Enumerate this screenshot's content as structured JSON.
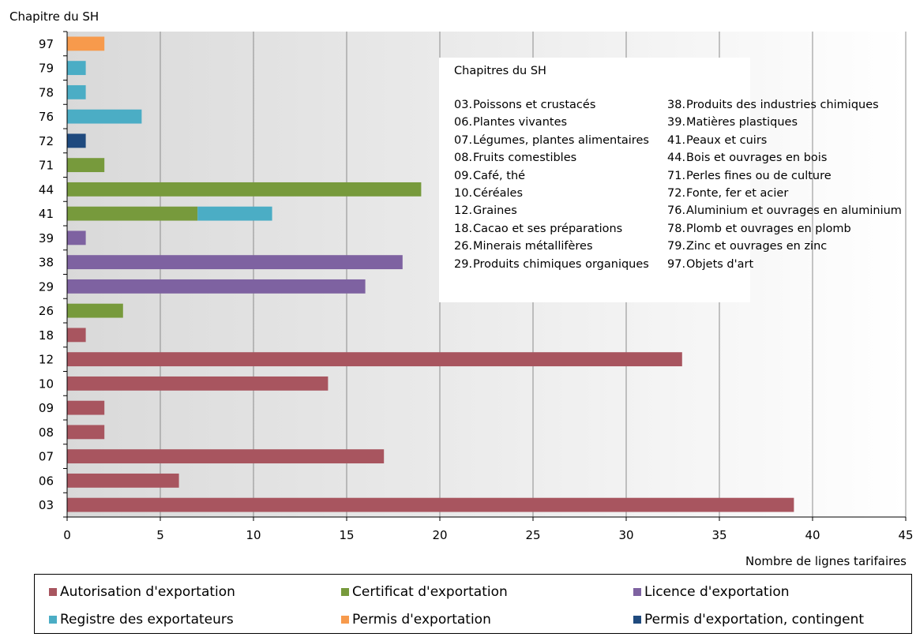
{
  "chart_data": {
    "type": "bar",
    "orientation": "horizontal",
    "stacked": true,
    "ylabel": "Chapitre du SH",
    "xlabel": "Nombre de lignes tarifaires",
    "xlim": [
      0,
      45
    ],
    "xticks": [
      0,
      5,
      10,
      15,
      20,
      25,
      30,
      35,
      40,
      45
    ],
    "categories": [
      "03",
      "06",
      "07",
      "08",
      "09",
      "10",
      "12",
      "18",
      "26",
      "29",
      "38",
      "39",
      "41",
      "44",
      "71",
      "72",
      "76",
      "78",
      "79",
      "97"
    ],
    "series": [
      {
        "name": "Autorisation d'exportation",
        "color": "#a8555f",
        "values": [
          39,
          6,
          17,
          2,
          2,
          14,
          33,
          1,
          0,
          0,
          0,
          0,
          0,
          0,
          0,
          0,
          0,
          0,
          0,
          0
        ]
      },
      {
        "name": "Certificat d'exportation",
        "color": "#779a3c",
        "values": [
          0,
          0,
          0,
          0,
          0,
          0,
          0,
          0,
          3,
          0,
          0,
          0,
          7,
          19,
          2,
          0,
          0,
          0,
          0,
          0
        ]
      },
      {
        "name": "Licence d'exportation",
        "color": "#7e62a1",
        "values": [
          0,
          0,
          0,
          0,
          0,
          0,
          0,
          0,
          0,
          16,
          18,
          1,
          0,
          0,
          0,
          0,
          0,
          0,
          0,
          0
        ]
      },
      {
        "name": "Registre des exportateurs",
        "color": "#4badc5",
        "values": [
          0,
          0,
          0,
          0,
          0,
          0,
          0,
          0,
          0,
          0,
          0,
          0,
          4,
          0,
          0,
          0,
          4,
          1,
          1,
          0
        ]
      },
      {
        "name": "Permis d'exportation",
        "color": "#f79a4c",
        "values": [
          0,
          0,
          0,
          0,
          0,
          0,
          0,
          0,
          0,
          0,
          0,
          0,
          0,
          0,
          0,
          0,
          0,
          0,
          0,
          2
        ]
      },
      {
        "name": "Permis d'exportation, contingent",
        "color": "#1f4a7e",
        "values": [
          0,
          0,
          0,
          0,
          0,
          0,
          0,
          0,
          0,
          0,
          0,
          0,
          0,
          0,
          0,
          1,
          0,
          0,
          0,
          0
        ]
      }
    ],
    "grid": "vertical",
    "legend_position": "bottom",
    "note": {
      "title": "Chapitres du SH",
      "left": [
        {
          "code": "03.",
          "text": "Poissons et crustacés"
        },
        {
          "code": "06.",
          "text": "Plantes vivantes"
        },
        {
          "code": "07.",
          "text": "Légumes, plantes alimentaires"
        },
        {
          "code": "08.",
          "text": "Fruits comestibles"
        },
        {
          "code": "09.",
          "text": "Café, thé"
        },
        {
          "code": "10.",
          "text": "Céréales"
        },
        {
          "code": "12.",
          "text": "Graines"
        },
        {
          "code": "18.",
          "text": "Cacao et ses préparations"
        },
        {
          "code": "26.",
          "text": "Minerais métallifères"
        },
        {
          "code": "29.",
          "text": "Produits chimiques organiques"
        }
      ],
      "right": [
        {
          "code": "38.",
          "text": "Produits des industries chimiques"
        },
        {
          "code": "39.",
          "text": "Matières plastiques"
        },
        {
          "code": "41.",
          "text": "Peaux et cuirs"
        },
        {
          "code": "44.",
          "text": "Bois et ouvrages en bois"
        },
        {
          "code": "71.",
          "text": "Perles fines ou de culture"
        },
        {
          "code": "72.",
          "text": "Fonte, fer et acier"
        },
        {
          "code": "76.",
          "text": "Aluminium et ouvrages en aluminium"
        },
        {
          "code": "78.",
          "text": "Plomb et ouvrages en plomb"
        },
        {
          "code": "79.",
          "text": "Zinc et ouvrages en zinc"
        },
        {
          "code": "97.",
          "text": "Objets d'art"
        }
      ]
    }
  }
}
